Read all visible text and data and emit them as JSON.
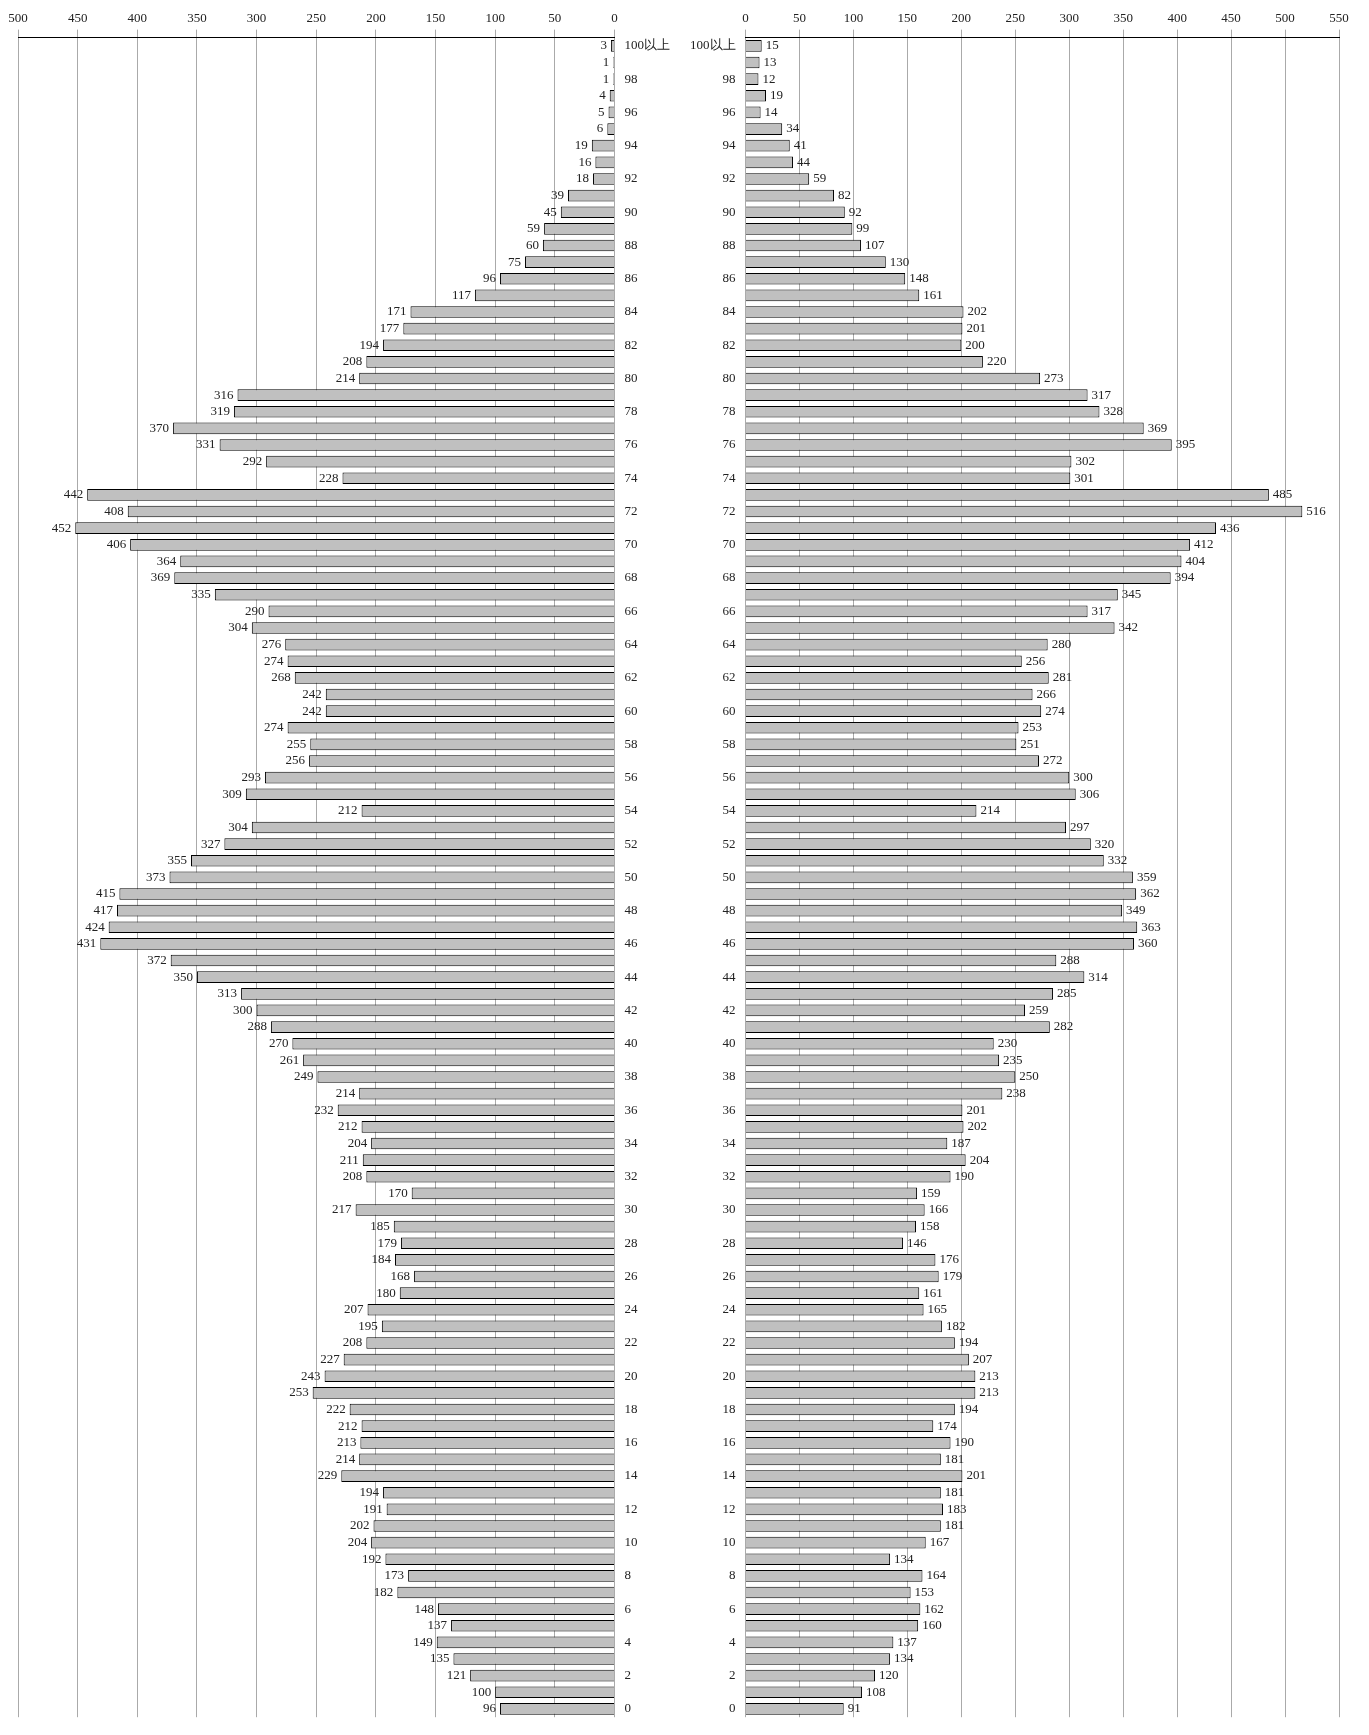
{
  "chart_data": [
    {
      "type": "bar",
      "orientation": "horizontal",
      "categories": [
        "100以上",
        null,
        "98",
        null,
        "96",
        null,
        "94",
        null,
        "92",
        null,
        "90",
        null,
        "88",
        null,
        "86",
        null,
        "84",
        null,
        "82",
        null,
        "80",
        null,
        "78",
        null,
        "76",
        null,
        "74",
        null,
        "72",
        null,
        "70",
        null,
        "68",
        null,
        "66",
        null,
        "64",
        null,
        "62",
        null,
        "60",
        null,
        "58",
        null,
        "56",
        null,
        "54",
        null,
        "52",
        null,
        "50",
        null,
        "48",
        null,
        "46",
        null,
        "44",
        null,
        "42",
        null,
        "40",
        null,
        "38",
        null,
        "36",
        null,
        "34",
        null,
        "32",
        null,
        "30",
        null,
        "28",
        null,
        "26",
        null,
        "24",
        null,
        "22",
        null,
        "20",
        null,
        "18",
        null,
        "16",
        null,
        "14",
        null,
        "12",
        null,
        "10",
        null,
        "8",
        null,
        "6",
        null,
        "4",
        null,
        "2",
        null,
        "0"
      ],
      "values": [
        3,
        1,
        1,
        4,
        5,
        6,
        19,
        16,
        18,
        39,
        45,
        59,
        60,
        75,
        96,
        117,
        171,
        177,
        194,
        208,
        214,
        316,
        319,
        370,
        331,
        292,
        228,
        442,
        408,
        452,
        406,
        364,
        369,
        335,
        290,
        304,
        276,
        274,
        268,
        242,
        242,
        274,
        255,
        256,
        293,
        309,
        212,
        304,
        327,
        355,
        373,
        415,
        417,
        424,
        431,
        372,
        350,
        313,
        300,
        288,
        270,
        261,
        249,
        214,
        232,
        212,
        204,
        211,
        208,
        170,
        217,
        185,
        179,
        184,
        168,
        180,
        207,
        195,
        208,
        227,
        243,
        253,
        222,
        212,
        213,
        214,
        229,
        194,
        191,
        202,
        204,
        192,
        173,
        182,
        148,
        137,
        149,
        135,
        121,
        100,
        96
      ],
      "color": "#c0c0c0",
      "xlim": [
        500,
        0
      ],
      "xticks": [
        500,
        450,
        400,
        350,
        300,
        250,
        200,
        150,
        100,
        50,
        0
      ],
      "grid": "x",
      "data_labels": true
    },
    {
      "type": "bar",
      "orientation": "horizontal",
      "categories": [
        "100以上",
        null,
        "98",
        null,
        "96",
        null,
        "94",
        null,
        "92",
        null,
        "90",
        null,
        "88",
        null,
        "86",
        null,
        "84",
        null,
        "82",
        null,
        "80",
        null,
        "78",
        null,
        "76",
        null,
        "74",
        null,
        "72",
        null,
        "70",
        null,
        "68",
        null,
        "66",
        null,
        "64",
        null,
        "62",
        null,
        "60",
        null,
        "58",
        null,
        "56",
        null,
        "54",
        null,
        "52",
        null,
        "50",
        null,
        "48",
        null,
        "46",
        null,
        "44",
        null,
        "42",
        null,
        "40",
        null,
        "38",
        null,
        "36",
        null,
        "34",
        null,
        "32",
        null,
        "30",
        null,
        "28",
        null,
        "26",
        null,
        "24",
        null,
        "22",
        null,
        "20",
        null,
        "18",
        null,
        "16",
        null,
        "14",
        null,
        "12",
        null,
        "10",
        null,
        "8",
        null,
        "6",
        null,
        "4",
        null,
        "2",
        null,
        "0"
      ],
      "values": [
        15,
        13,
        12,
        19,
        14,
        34,
        41,
        44,
        59,
        82,
        92,
        99,
        107,
        130,
        148,
        161,
        202,
        201,
        200,
        220,
        273,
        317,
        328,
        369,
        395,
        302,
        301,
        485,
        516,
        436,
        412,
        404,
        394,
        345,
        317,
        342,
        280,
        256,
        281,
        266,
        274,
        253,
        251,
        272,
        300,
        306,
        214,
        297,
        320,
        332,
        359,
        362,
        349,
        363,
        360,
        288,
        314,
        285,
        259,
        282,
        230,
        235,
        250,
        238,
        201,
        202,
        187,
        204,
        190,
        159,
        166,
        158,
        146,
        176,
        179,
        161,
        165,
        182,
        194,
        207,
        213,
        213,
        194,
        174,
        190,
        181,
        201,
        181,
        183,
        181,
        167,
        134,
        164,
        153,
        162,
        160,
        137,
        134,
        120,
        108,
        91
      ],
      "color": "#c0c0c0",
      "xlim": [
        0,
        550
      ],
      "xticks": [
        0,
        50,
        100,
        150,
        200,
        250,
        300,
        350,
        400,
        450,
        500,
        550
      ],
      "grid": "x",
      "data_labels": true
    }
  ]
}
